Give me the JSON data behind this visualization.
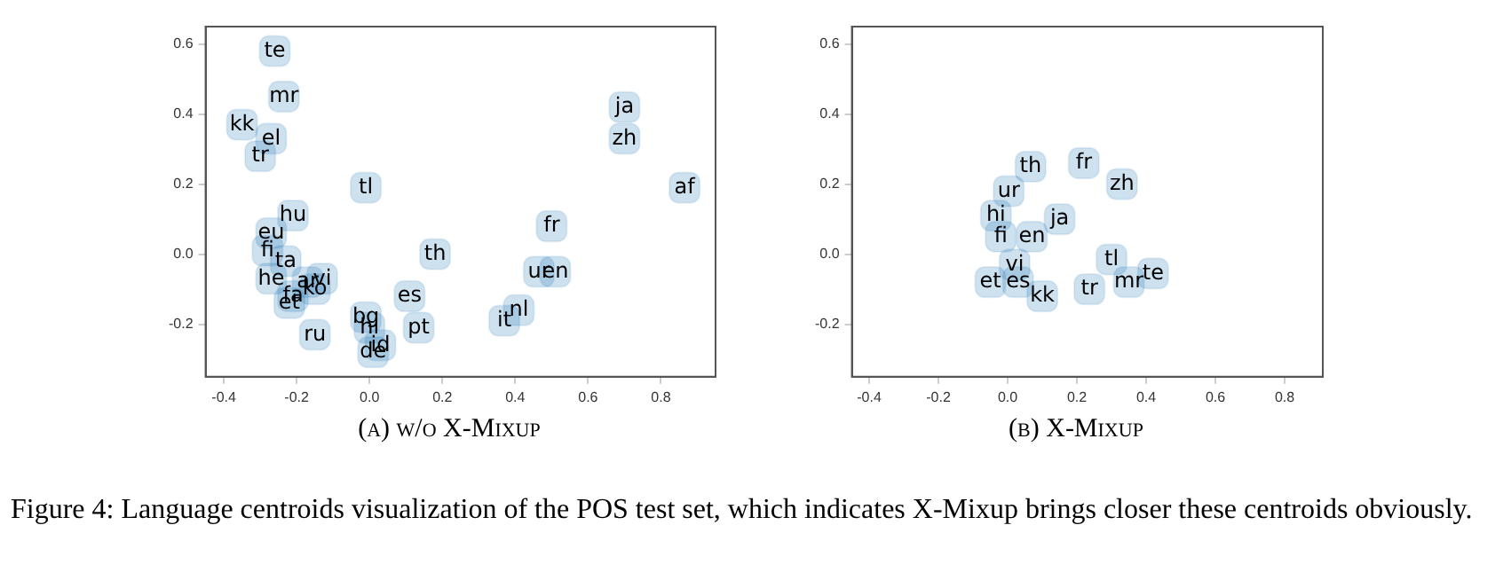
{
  "chart_data": [
    {
      "type": "scatter",
      "title": "(a) w/o X-Mixup",
      "marker": "square",
      "grid": false,
      "legend": false,
      "xlim": [
        -0.45,
        0.95
      ],
      "ylim": [
        -0.35,
        0.65
      ],
      "xticks": [
        -0.4,
        -0.2,
        {
          "value": 0,
          "label": "0.0"
        },
        0.2,
        0.4,
        0.6,
        0.8
      ],
      "yticks": [
        -0.2,
        {
          "value": 0,
          "label": "0.0"
        },
        0.2,
        0.4,
        0.6
      ],
      "series": [
        {
          "color": "#1f77b4",
          "x": [
            -0.26,
            -0.235,
            -0.35,
            -0.27,
            -0.3,
            -0.01,
            -0.21,
            -0.27,
            -0.28,
            -0.23,
            -0.27,
            -0.17,
            -0.13,
            -0.15,
            -0.21,
            -0.22,
            -0.15,
            -0.01,
            0.0,
            0.03,
            0.01,
            0.11,
            0.135,
            0.18,
            0.5,
            0.465,
            0.51,
            0.41,
            0.37,
            0.7,
            0.7,
            0.865
          ],
          "values": [
            0.58,
            0.45,
            0.37,
            0.33,
            0.28,
            0.19,
            0.11,
            0.06,
            0.01,
            -0.02,
            -0.07,
            -0.08,
            -0.07,
            -0.1,
            -0.12,
            -0.14,
            -0.23,
            -0.18,
            -0.21,
            -0.26,
            -0.28,
            -0.12,
            -0.21,
            0.0,
            0.08,
            -0.05,
            -0.05,
            -0.16,
            -0.19,
            0.42,
            0.33,
            0.19
          ],
          "value_labels": [
            "te",
            "mr",
            "kk",
            "el",
            "tr",
            "tl",
            "hu",
            "eu",
            "fi",
            "ta",
            "he",
            "ar",
            "vi",
            "ko",
            "fa",
            "et",
            "ru",
            "bg",
            "hi",
            "id",
            "de",
            "es",
            "pt",
            "th",
            "fr",
            "ur",
            "en",
            "nl",
            "it",
            "ja",
            "zh",
            "af"
          ]
        }
      ],
      "annotations": [
        "Figure 4: Language centroids visualization of the POS test set, which indicates X-Mixup brings closer these centroids obviously."
      ]
    },
    {
      "type": "scatter",
      "title": "(b) X-Mixup",
      "marker": "square",
      "grid": false,
      "legend": false,
      "xlim": [
        -0.45,
        0.91
      ],
      "ylim": [
        -0.35,
        0.65
      ],
      "xticks": [
        -0.4,
        -0.2,
        {
          "value": 0,
          "label": "0.0"
        },
        0.2,
        0.4,
        0.6,
        0.8
      ],
      "yticks": [
        -0.2,
        {
          "value": 0,
          "label": "0.0"
        },
        0.2,
        0.4,
        0.6
      ],
      "series": [
        {
          "color": "#1f77b4",
          "x": [
            -0.034,
            -0.02,
            0.07,
            0.02,
            -0.05,
            0.03,
            0.1,
            0.003,
            0.066,
            0.22,
            0.33,
            0.15,
            0.3,
            0.42,
            0.35,
            0.236
          ],
          "values": [
            0.11,
            0.05,
            0.05,
            -0.03,
            -0.08,
            -0.08,
            -0.12,
            0.18,
            0.25,
            0.26,
            0.2,
            0.1,
            -0.015,
            -0.055,
            -0.08,
            -0.1
          ],
          "value_labels": [
            "hi",
            "fi",
            "en",
            "vi",
            "et",
            "es",
            "kk",
            "ur",
            "th",
            "fr",
            "zh",
            "ja",
            "tl",
            "te",
            "mr",
            "tr"
          ]
        }
      ]
    }
  ]
}
